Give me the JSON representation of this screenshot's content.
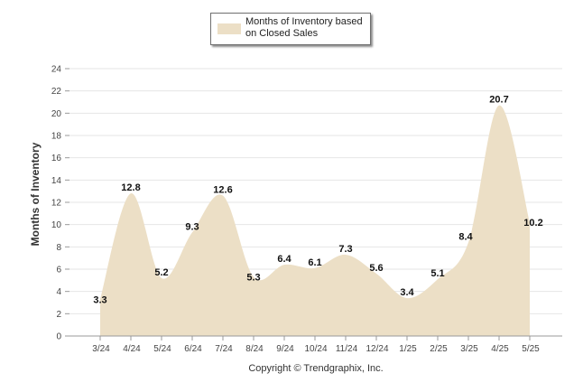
{
  "legend": {
    "label": "Months of Inventory based on Closed Sales"
  },
  "copyright": "Copyright © Trendgraphix, Inc.",
  "colors": {
    "area": "#ecdfc6",
    "grid": "#e6e6e6",
    "axis": "#999999"
  },
  "chart_data": {
    "type": "area",
    "categories": [
      "3/24",
      "4/24",
      "5/24",
      "6/24",
      "7/24",
      "8/24",
      "9/24",
      "10/24",
      "11/24",
      "12/24",
      "1/25",
      "2/25",
      "3/25",
      "4/25",
      "5/25"
    ],
    "series": [
      {
        "name": "Months of Inventory based on Closed Sales",
        "values": [
          3.3,
          12.8,
          5.2,
          9.3,
          12.6,
          5.3,
          6.4,
          6.1,
          7.3,
          5.6,
          3.4,
          5.1,
          8.4,
          20.7,
          10.2
        ]
      }
    ],
    "data_labels": [
      "3.3",
      "12.8",
      "5.2",
      "9.3",
      "12.6",
      "5.3",
      "6.4",
      "6.1",
      "7.3",
      "5.6",
      "3.4",
      "5.1",
      "8.4",
      "20.7",
      "10.2"
    ],
    "yticks": [
      "0",
      "2",
      "4",
      "6",
      "8",
      "10",
      "12",
      "14",
      "16",
      "18",
      "20",
      "22",
      "24"
    ],
    "ylabel": "Months of Inventory",
    "ylim": [
      0,
      24
    ],
    "grid": true,
    "legend_position": "top-center"
  }
}
